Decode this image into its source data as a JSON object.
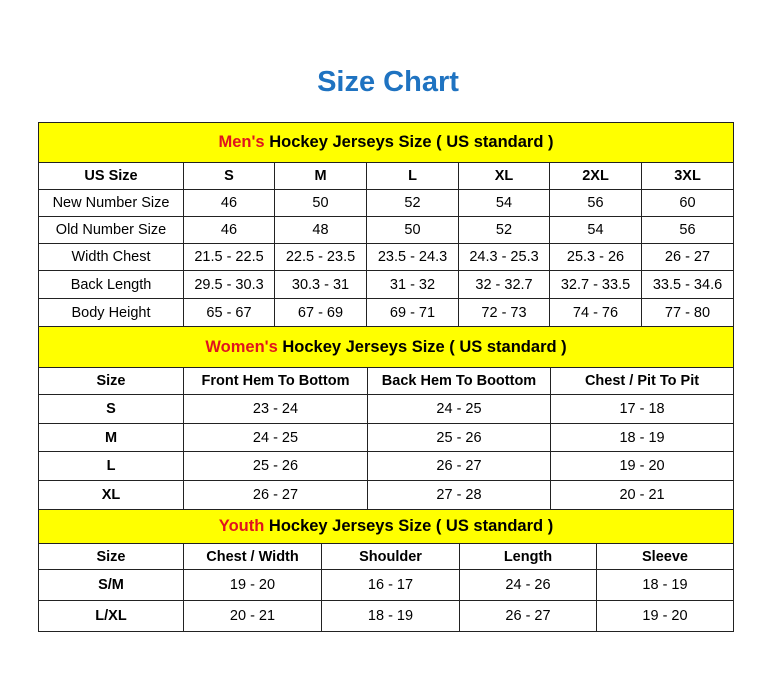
{
  "title": "Size Chart",
  "colors": {
    "title": "#1f73c1",
    "section_bg": "#ffff00",
    "highlight": "#e0141e"
  },
  "sections": [
    {
      "highlight": "Men's",
      "title": " Hockey Jerseys Size ( US standard )",
      "headers": [
        "US Size",
        "S",
        "M",
        "L",
        "XL",
        "2XL",
        "3XL"
      ],
      "rows": [
        [
          "New Number Size",
          "46",
          "50",
          "52",
          "54",
          "56",
          "60"
        ],
        [
          "Old Number Size",
          "46",
          "48",
          "50",
          "52",
          "54",
          "56"
        ],
        [
          "Width Chest",
          "21.5 - 22.5",
          "22.5 - 23.5",
          "23.5 - 24.3",
          "24.3 - 25.3",
          "25.3 - 26",
          "26 - 27"
        ],
        [
          "Back Length",
          "29.5 - 30.3",
          "30.3 - 31",
          "31 - 32",
          "32 - 32.7",
          "32.7 - 33.5",
          "33.5 - 34.6"
        ],
        [
          "Body Height",
          "65 - 67",
          "67 - 69",
          "69 - 71",
          "72 - 73",
          "74 - 76",
          "77 - 80"
        ]
      ]
    },
    {
      "highlight": "Women's",
      "title": " Hockey Jerseys Size ( US standard )",
      "headers": [
        "Size",
        "Front Hem To Bottom",
        "Back Hem To Boottom",
        "Chest / Pit To Pit"
      ],
      "rows": [
        [
          "S",
          "23 - 24",
          "24 - 25",
          "17 - 18"
        ],
        [
          "M",
          "24 - 25",
          "25 - 26",
          "18 - 19"
        ],
        [
          "L",
          "25 - 26",
          "26 - 27",
          "19 - 20"
        ],
        [
          "XL",
          "26 - 27",
          "27 - 28",
          "20 - 21"
        ]
      ]
    },
    {
      "highlight": "Youth",
      "title": " Hockey Jerseys Size ( US standard )",
      "headers": [
        "Size",
        "Chest / Width",
        "Shoulder",
        "Length",
        "Sleeve"
      ],
      "rows": [
        [
          "S/M",
          "19 - 20",
          "16 - 17",
          "24 - 26",
          "18 - 19"
        ],
        [
          "L/XL",
          "20 - 21",
          "18 - 19",
          "26 - 27",
          "19 - 20"
        ]
      ]
    }
  ]
}
